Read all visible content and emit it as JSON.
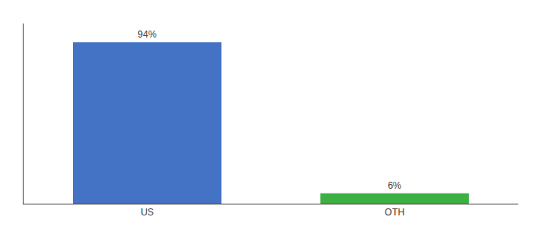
{
  "chart_data": {
    "type": "bar",
    "categories": [
      "US",
      "OTH"
    ],
    "values": [
      94,
      6
    ],
    "value_labels": [
      "94%",
      "6%"
    ],
    "colors": [
      "#4472c4",
      "#3cb043"
    ],
    "ylim": [
      0,
      105
    ],
    "data_labels": true,
    "tick_labels": "x",
    "grid": false
  }
}
